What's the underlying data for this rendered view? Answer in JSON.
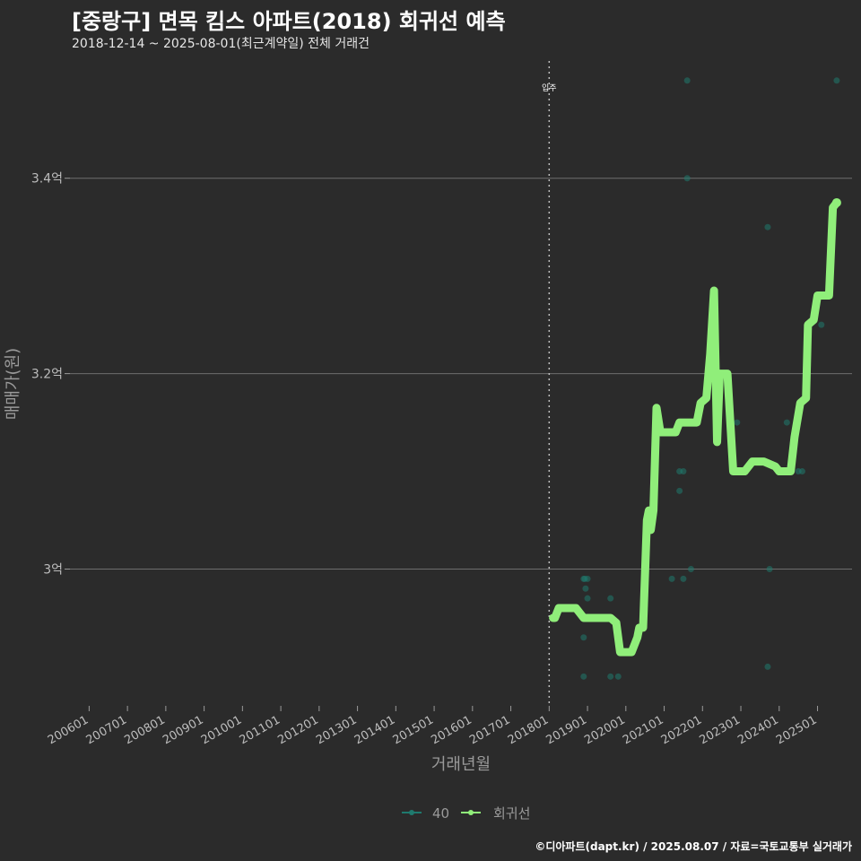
{
  "header": {
    "title": "[중랑구] 면목 킴스 아파트(2018) 회귀선 예측",
    "subtitle": "2018-12-14 ~ 2025-08-01(최근계약일) 전체 거래건"
  },
  "footer": {
    "credit": "©디아파트(dapt.kr) / 2025.08.07 / 자료=국토교통부 실거래가"
  },
  "colors": {
    "background": "#2b2b2b",
    "grid": "#6e6e6e",
    "series_40": "#1f7a6e",
    "regression": "#90ee7a"
  },
  "chart_data": {
    "type": "scatter",
    "title": "[중랑구] 면목 킴스 아파트(2018) 회귀선 예측",
    "xlabel": "거래년월",
    "ylabel": "매매가(원)",
    "x_range": [
      2005.5,
      2025.9
    ],
    "ylim": [
      2.86,
      3.52
    ],
    "y_ticks": [
      3.0,
      3.2,
      3.4
    ],
    "y_tick_labels": [
      "3억",
      "3.2억",
      "3.4억"
    ],
    "x_ticks": [
      2006,
      2007,
      2008,
      2009,
      2010,
      2011,
      2012,
      2013,
      2014,
      2015,
      2016,
      2017,
      2018,
      2019,
      2020,
      2021,
      2022,
      2023,
      2024,
      2025
    ],
    "x_tick_labels": [
      "200601",
      "200701",
      "200801",
      "200901",
      "201001",
      "201101",
      "201201",
      "201301",
      "201401",
      "201501",
      "201601",
      "201701",
      "201801",
      "201901",
      "202001",
      "202101",
      "202201",
      "202301",
      "202401",
      "202501"
    ],
    "annotation": {
      "label": "입주",
      "x": 2018.0
    },
    "legend": [
      "40",
      "회귀선"
    ],
    "legend_position": "bottom",
    "series": [
      {
        "name": "40",
        "points": [
          [
            2018.9,
            2.99
          ],
          [
            2018.93,
            2.99
          ],
          [
            2019.0,
            2.99
          ],
          [
            2018.95,
            2.98
          ],
          [
            2019.0,
            2.97
          ],
          [
            2018.9,
            2.93
          ],
          [
            2018.9,
            2.89
          ],
          [
            2019.6,
            2.89
          ],
          [
            2019.8,
            2.89
          ],
          [
            2019.6,
            2.97
          ],
          [
            2021.2,
            2.99
          ],
          [
            2021.4,
            3.08
          ],
          [
            2021.4,
            3.1
          ],
          [
            2021.5,
            3.1
          ],
          [
            2021.5,
            2.99
          ],
          [
            2021.7,
            3.0
          ],
          [
            2021.6,
            3.4
          ],
          [
            2021.6,
            3.5
          ],
          [
            2022.9,
            3.15
          ],
          [
            2023.7,
            3.35
          ],
          [
            2023.75,
            3.0
          ],
          [
            2023.7,
            2.9
          ],
          [
            2024.0,
            3.1
          ],
          [
            2024.2,
            3.15
          ],
          [
            2024.5,
            3.1
          ],
          [
            2024.6,
            3.1
          ],
          [
            2025.1,
            3.25
          ],
          [
            2025.5,
            3.5
          ]
        ]
      },
      {
        "name": "회귀선",
        "points": [
          [
            2018.1,
            2.95
          ],
          [
            2018.15,
            2.95
          ],
          [
            2018.25,
            2.96
          ],
          [
            2018.7,
            2.96
          ],
          [
            2018.8,
            2.955
          ],
          [
            2018.9,
            2.95
          ],
          [
            2019.6,
            2.95
          ],
          [
            2019.75,
            2.945
          ],
          [
            2019.85,
            2.915
          ],
          [
            2020.15,
            2.915
          ],
          [
            2020.3,
            2.93
          ],
          [
            2020.35,
            2.94
          ],
          [
            2020.45,
            2.94
          ],
          [
            2020.55,
            3.05
          ],
          [
            2020.6,
            3.06
          ],
          [
            2020.65,
            3.04
          ],
          [
            2020.72,
            3.06
          ],
          [
            2020.8,
            3.165
          ],
          [
            2020.9,
            3.14
          ],
          [
            2021.3,
            3.14
          ],
          [
            2021.4,
            3.15
          ],
          [
            2021.85,
            3.15
          ],
          [
            2021.95,
            3.17
          ],
          [
            2022.1,
            3.175
          ],
          [
            2022.2,
            3.22
          ],
          [
            2022.3,
            3.285
          ],
          [
            2022.38,
            3.13
          ],
          [
            2022.45,
            3.2
          ],
          [
            2022.65,
            3.2
          ],
          [
            2022.8,
            3.1
          ],
          [
            2023.1,
            3.1
          ],
          [
            2023.3,
            3.11
          ],
          [
            2023.6,
            3.11
          ],
          [
            2023.9,
            3.105
          ],
          [
            2024.0,
            3.1
          ],
          [
            2024.3,
            3.1
          ],
          [
            2024.4,
            3.135
          ],
          [
            2024.55,
            3.17
          ],
          [
            2024.7,
            3.175
          ],
          [
            2024.75,
            3.25
          ],
          [
            2024.9,
            3.255
          ],
          [
            2025.0,
            3.28
          ],
          [
            2025.3,
            3.28
          ],
          [
            2025.4,
            3.37
          ],
          [
            2025.5,
            3.375
          ]
        ]
      }
    ]
  }
}
